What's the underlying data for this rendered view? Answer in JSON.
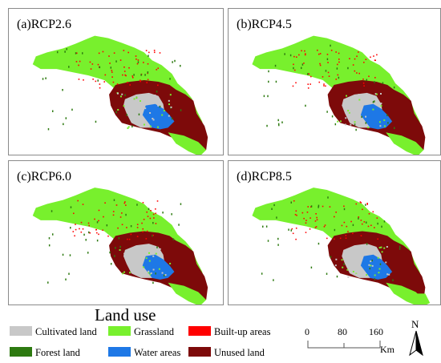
{
  "panels": [
    {
      "label": "(a)RCP2.6"
    },
    {
      "label": "(b)RCP4.5"
    },
    {
      "label": "(c)RCP6.0"
    },
    {
      "label": "(d)RCP8.5"
    }
  ],
  "legend": {
    "title": "Land use",
    "items": [
      {
        "label": "Cultivated land",
        "color": "#c8c8c8"
      },
      {
        "label": "Grassland",
        "color": "#78f02d"
      },
      {
        "label": "Built-up areas",
        "color": "#ff0000"
      },
      {
        "label": "Forest land",
        "color": "#2d7a10"
      },
      {
        "label": "Water areas",
        "color": "#1e78e6"
      },
      {
        "label": "Unused land",
        "color": "#7d0a0a"
      }
    ]
  },
  "scale_bar": {
    "ticks": [
      "0",
      "80",
      "160"
    ],
    "unit": "Km"
  },
  "north_arrow": {
    "letter": "N"
  }
}
